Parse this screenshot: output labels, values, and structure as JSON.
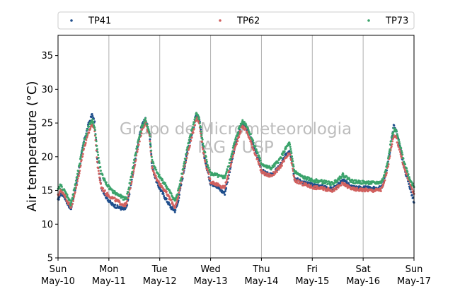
{
  "chart_data": {
    "type": "scatter",
    "title": "",
    "xlabel": "",
    "ylabel": "Air temperature (°C)",
    "ylim": [
      5,
      38
    ],
    "yticks": [
      "5",
      "10",
      "15",
      "20",
      "25",
      "30",
      "35"
    ],
    "xlim": [
      0,
      7
    ],
    "xticks": [
      {
        "day": "Sun",
        "date": "May-10"
      },
      {
        "day": "Mon",
        "date": "May-11"
      },
      {
        "day": "Tue",
        "date": "May-12"
      },
      {
        "day": "Wed",
        "date": "May-13"
      },
      {
        "day": "Thu",
        "date": "May-14"
      },
      {
        "day": "Fri",
        "date": "May-15"
      },
      {
        "day": "Sat",
        "date": "May-16"
      },
      {
        "day": "Sun",
        "date": "May-17"
      }
    ],
    "grid": "vertical",
    "legend_position": "top",
    "watermark": [
      "Grupo de Micrometeorologia",
      "IAG / USP"
    ],
    "series": [
      {
        "name": "TP41",
        "color": "#1f4e8c",
        "points": [
          [
            0,
            13.5
          ],
          [
            0.05,
            14.6
          ],
          [
            0.12,
            14.2
          ],
          [
            0.2,
            12.9
          ],
          [
            0.25,
            12.2
          ],
          [
            0.3,
            13.8
          ],
          [
            0.4,
            17.5
          ],
          [
            0.5,
            22
          ],
          [
            0.6,
            24.8
          ],
          [
            0.67,
            26.3
          ],
          [
            0.72,
            25
          ],
          [
            0.78,
            19
          ],
          [
            0.85,
            15.5
          ],
          [
            0.95,
            14
          ],
          [
            1.05,
            13
          ],
          [
            1.15,
            12.6
          ],
          [
            1.3,
            12.2
          ],
          [
            1.35,
            12.5
          ],
          [
            1.45,
            16.5
          ],
          [
            1.55,
            21
          ],
          [
            1.65,
            24.8
          ],
          [
            1.72,
            25.6
          ],
          [
            1.8,
            23.5
          ],
          [
            1.85,
            18.5
          ],
          [
            1.95,
            16
          ],
          [
            2.1,
            14
          ],
          [
            2.22,
            12.5
          ],
          [
            2.3,
            12
          ],
          [
            2.35,
            13
          ],
          [
            2.45,
            17
          ],
          [
            2.55,
            21
          ],
          [
            2.65,
            24
          ],
          [
            2.72,
            26.3
          ],
          [
            2.78,
            25.5
          ],
          [
            2.85,
            21
          ],
          [
            2.92,
            18.5
          ],
          [
            3.0,
            16
          ],
          [
            3.1,
            15.8
          ],
          [
            3.2,
            15
          ],
          [
            3.28,
            14.6
          ],
          [
            3.35,
            17
          ],
          [
            3.45,
            20.5
          ],
          [
            3.55,
            23.5
          ],
          [
            3.62,
            25
          ],
          [
            3.7,
            24.5
          ],
          [
            3.8,
            22.5
          ],
          [
            3.9,
            20.5
          ],
          [
            4.0,
            18
          ],
          [
            4.1,
            17.5
          ],
          [
            4.2,
            17.3
          ],
          [
            4.35,
            18.5
          ],
          [
            4.5,
            20.5
          ],
          [
            4.55,
            21
          ],
          [
            4.6,
            19.5
          ],
          [
            4.65,
            16.8
          ],
          [
            4.8,
            16.3
          ],
          [
            5.0,
            15.8
          ],
          [
            5.2,
            15.6
          ],
          [
            5.4,
            15.2
          ],
          [
            5.6,
            16.5
          ],
          [
            5.8,
            15.5
          ],
          [
            6.0,
            15.4
          ],
          [
            6.2,
            15.3
          ],
          [
            6.35,
            15.4
          ],
          [
            6.4,
            16
          ],
          [
            6.5,
            19.5
          ],
          [
            6.55,
            22
          ],
          [
            6.6,
            24.5
          ],
          [
            6.65,
            24
          ],
          [
            6.72,
            21.5
          ],
          [
            6.8,
            18.5
          ],
          [
            6.9,
            16
          ],
          [
            7.0,
            13.2
          ]
        ]
      },
      {
        "name": "TP62",
        "color": "#d1605e",
        "points": [
          [
            0,
            14.2
          ],
          [
            0.05,
            15
          ],
          [
            0.12,
            14.5
          ],
          [
            0.2,
            13.2
          ],
          [
            0.25,
            12.5
          ],
          [
            0.3,
            13.5
          ],
          [
            0.4,
            17
          ],
          [
            0.5,
            21
          ],
          [
            0.6,
            23.5
          ],
          [
            0.67,
            25
          ],
          [
            0.72,
            24
          ],
          [
            0.78,
            18.5
          ],
          [
            0.85,
            15.5
          ],
          [
            0.95,
            14.5
          ],
          [
            1.05,
            14
          ],
          [
            1.15,
            13.5
          ],
          [
            1.3,
            12.8
          ],
          [
            1.35,
            13
          ],
          [
            1.45,
            16.5
          ],
          [
            1.55,
            20.5
          ],
          [
            1.65,
            24
          ],
          [
            1.72,
            25.2
          ],
          [
            1.8,
            23
          ],
          [
            1.85,
            18.5
          ],
          [
            1.95,
            16.5
          ],
          [
            2.1,
            15
          ],
          [
            2.22,
            13.5
          ],
          [
            2.3,
            12.5
          ],
          [
            2.35,
            13.5
          ],
          [
            2.45,
            17.5
          ],
          [
            2.55,
            20.5
          ],
          [
            2.65,
            23.5
          ],
          [
            2.72,
            25.8
          ],
          [
            2.78,
            25
          ],
          [
            2.85,
            21
          ],
          [
            2.92,
            18.5
          ],
          [
            3.0,
            16.3
          ],
          [
            3.1,
            16
          ],
          [
            3.2,
            15.5
          ],
          [
            3.28,
            15.5
          ],
          [
            3.35,
            17.5
          ],
          [
            3.45,
            20.5
          ],
          [
            3.55,
            23
          ],
          [
            3.62,
            24.5
          ],
          [
            3.7,
            24
          ],
          [
            3.8,
            22
          ],
          [
            3.9,
            20
          ],
          [
            4.0,
            17.8
          ],
          [
            4.1,
            17.3
          ],
          [
            4.2,
            17.2
          ],
          [
            4.35,
            18.3
          ],
          [
            4.5,
            20
          ],
          [
            4.55,
            20.5
          ],
          [
            4.6,
            19
          ],
          [
            4.65,
            16.5
          ],
          [
            4.8,
            16
          ],
          [
            5.0,
            15.5
          ],
          [
            5.2,
            15.3
          ],
          [
            5.4,
            15
          ],
          [
            5.6,
            16
          ],
          [
            5.8,
            15.2
          ],
          [
            6.0,
            15.1
          ],
          [
            6.2,
            15
          ],
          [
            6.35,
            15.1
          ],
          [
            6.4,
            15.8
          ],
          [
            6.5,
            19
          ],
          [
            6.55,
            21.5
          ],
          [
            6.6,
            23
          ],
          [
            6.65,
            22.8
          ],
          [
            6.72,
            21
          ],
          [
            6.8,
            18.5
          ],
          [
            6.9,
            16.5
          ],
          [
            7.0,
            14.5
          ]
        ]
      },
      {
        "name": "TP73",
        "color": "#3aa36b",
        "points": [
          [
            0,
            15
          ],
          [
            0.05,
            15.8
          ],
          [
            0.12,
            15
          ],
          [
            0.2,
            14
          ],
          [
            0.25,
            13
          ],
          [
            0.3,
            14.5
          ],
          [
            0.4,
            18
          ],
          [
            0.5,
            22
          ],
          [
            0.6,
            24.5
          ],
          [
            0.67,
            25.5
          ],
          [
            0.72,
            24.5
          ],
          [
            0.78,
            20.5
          ],
          [
            0.85,
            17.5
          ],
          [
            0.95,
            16
          ],
          [
            1.05,
            15
          ],
          [
            1.15,
            14.5
          ],
          [
            1.3,
            13.8
          ],
          [
            1.35,
            14
          ],
          [
            1.45,
            17.5
          ],
          [
            1.55,
            21.5
          ],
          [
            1.65,
            24.5
          ],
          [
            1.72,
            25.5
          ],
          [
            1.8,
            23.5
          ],
          [
            1.85,
            19.5
          ],
          [
            1.95,
            17.5
          ],
          [
            2.1,
            16
          ],
          [
            2.22,
            14.5
          ],
          [
            2.3,
            13.5
          ],
          [
            2.35,
            14.5
          ],
          [
            2.45,
            18
          ],
          [
            2.55,
            21.5
          ],
          [
            2.65,
            24.5
          ],
          [
            2.72,
            26.5
          ],
          [
            2.78,
            25.5
          ],
          [
            2.85,
            22
          ],
          [
            2.92,
            19.5
          ],
          [
            3.0,
            17.5
          ],
          [
            3.1,
            17.3
          ],
          [
            3.2,
            17
          ],
          [
            3.28,
            17
          ],
          [
            3.35,
            18.5
          ],
          [
            3.45,
            21.5
          ],
          [
            3.55,
            24
          ],
          [
            3.62,
            25.3
          ],
          [
            3.7,
            24.8
          ],
          [
            3.8,
            23
          ],
          [
            3.9,
            21
          ],
          [
            4.0,
            19
          ],
          [
            4.1,
            18.5
          ],
          [
            4.2,
            18.3
          ],
          [
            4.35,
            19.5
          ],
          [
            4.5,
            21.5
          ],
          [
            4.55,
            22
          ],
          [
            4.6,
            20
          ],
          [
            4.65,
            17.8
          ],
          [
            4.8,
            17
          ],
          [
            5.0,
            16.5
          ],
          [
            5.2,
            16.3
          ],
          [
            5.4,
            16
          ],
          [
            5.6,
            17.3
          ],
          [
            5.8,
            16.3
          ],
          [
            6.0,
            16.2
          ],
          [
            6.2,
            16.1
          ],
          [
            6.35,
            16.2
          ],
          [
            6.4,
            16.8
          ],
          [
            6.5,
            20
          ],
          [
            6.55,
            22.5
          ],
          [
            6.6,
            24
          ],
          [
            6.65,
            23.8
          ],
          [
            6.72,
            21.8
          ],
          [
            6.8,
            19.5
          ],
          [
            6.9,
            17
          ],
          [
            7.0,
            15.5
          ]
        ]
      }
    ]
  }
}
